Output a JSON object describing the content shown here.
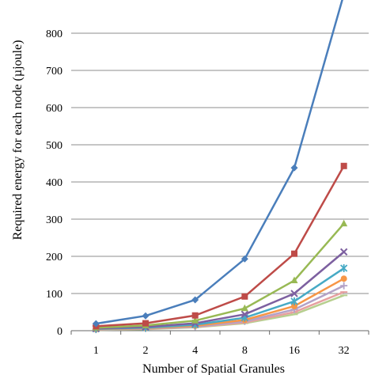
{
  "chart_data": {
    "type": "line",
    "title": "",
    "xlabel": "Number of Spatial Granules",
    "ylabel": "Required energy for each node (µjoule)",
    "categories": [
      "1",
      "2",
      "4",
      "8",
      "16",
      "32"
    ],
    "ylim": [
      0,
      900
    ],
    "yticks": [
      0,
      100,
      200,
      300,
      400,
      500,
      600,
      700,
      800,
      900
    ],
    "grid": true,
    "legend": "none",
    "series": [
      {
        "values": [
          19,
          40,
          83,
          193,
          438,
          905
        ],
        "color": "#4a7ebb",
        "marker": "diamond"
      },
      {
        "values": [
          12,
          20,
          41,
          92,
          207,
          443
        ],
        "color": "#be4b48",
        "marker": "square"
      },
      {
        "values": [
          8,
          14,
          27,
          60,
          135,
          288
        ],
        "color": "#98b954",
        "marker": "triangle"
      },
      {
        "values": [
          6,
          10,
          20,
          44,
          100,
          212
        ],
        "color": "#7d60a0",
        "marker": "x"
      },
      {
        "values": [
          5,
          8,
          16,
          35,
          79,
          168
        ],
        "color": "#46aac5",
        "marker": "star"
      },
      {
        "values": [
          4,
          7,
          13,
          29,
          66,
          140
        ],
        "color": "#f79646",
        "marker": "circle"
      },
      {
        "values": [
          3,
          6,
          11,
          25,
          57,
          121
        ],
        "color": "#b3a2c7",
        "marker": "plus"
      },
      {
        "values": [
          3,
          5,
          10,
          22,
          50,
          104
        ],
        "color": "#e6a0a0",
        "marker": "dash"
      },
      {
        "values": [
          2,
          4,
          9,
          20,
          44,
          95
        ],
        "color": "#b7cf8f",
        "marker": "dash"
      }
    ]
  }
}
